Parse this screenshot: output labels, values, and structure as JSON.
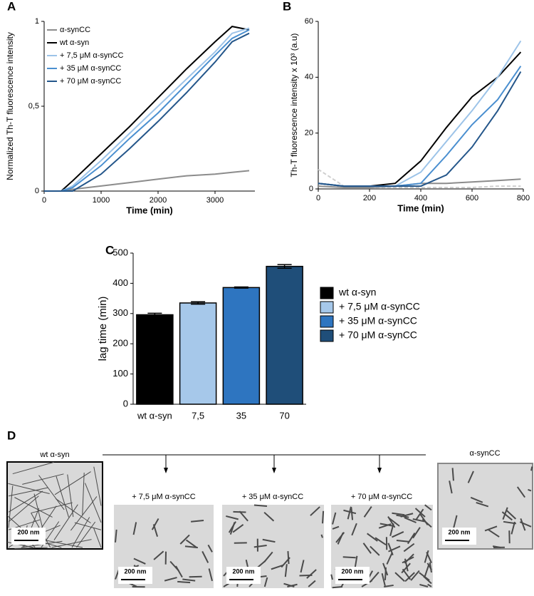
{
  "chart_data": [
    {
      "type": "line",
      "label": "A",
      "xlabel": "Time (min)",
      "ylabel": "Normalized Th-T fluorescence intensity",
      "x": [
        0,
        300,
        500,
        1000,
        1500,
        2000,
        2500,
        3000,
        3300,
        3600
      ],
      "xlim": [
        0,
        3700
      ],
      "xticks": [
        0,
        1000,
        2000,
        3000
      ],
      "ylim": [
        0,
        1
      ],
      "yticks": [
        0,
        {
          "value": 0.5,
          "label": "0,5"
        },
        1
      ],
      "legend": "upper left",
      "series": [
        {
          "name": "α-synCC",
          "color": "#8c8c8c",
          "values": [
            0,
            0,
            0.01,
            0.03,
            0.05,
            0.07,
            0.09,
            0.1,
            0.11,
            0.12
          ]
        },
        {
          "name": "wt α-syn",
          "color": "#000000",
          "values": [
            0,
            0,
            0.06,
            0.22,
            0.38,
            0.55,
            0.72,
            0.88,
            0.97,
            0.95
          ]
        },
        {
          "name": "+ 7,5 μM α-synCC",
          "color": "#9cc3e8",
          "values": [
            0,
            0,
            0.03,
            0.18,
            0.34,
            0.5,
            0.66,
            0.82,
            0.93,
            0.96
          ]
        },
        {
          "name": "+ 35 μM α-synCC",
          "color": "#4a8fd0",
          "values": [
            0,
            0,
            0.02,
            0.15,
            0.31,
            0.46,
            0.63,
            0.8,
            0.9,
            0.95
          ]
        },
        {
          "name": "+ 70 μM α-synCC",
          "color": "#24568a",
          "values": [
            0,
            0,
            0,
            0.1,
            0.25,
            0.41,
            0.58,
            0.76,
            0.88,
            0.93
          ]
        }
      ]
    },
    {
      "type": "line",
      "label": "B",
      "xlabel": "Time (min)",
      "ylabel": "Th-T fluorescence intensity x 10³ (a.u)",
      "x": [
        0,
        100,
        200,
        300,
        400,
        500,
        600,
        700,
        790
      ],
      "xlim": [
        0,
        800
      ],
      "xticks": [
        0,
        200,
        400,
        600,
        800
      ],
      "ylim": [
        0,
        60
      ],
      "yticks": [
        0,
        20,
        40,
        60
      ],
      "series": [
        {
          "color": "#cfcfcf",
          "dashed": true,
          "values": [
            7,
            1,
            0.5,
            0.5,
            0.5,
            0.5,
            0.5,
            1,
            1
          ]
        },
        {
          "color": "#8c8c8c",
          "values": [
            1,
            0.5,
            0.5,
            1,
            2,
            2,
            2.5,
            3,
            3.5
          ]
        },
        {
          "color": "#000000",
          "values": [
            2,
            1,
            1,
            2,
            10,
            22,
            33,
            40,
            49
          ]
        },
        {
          "color": "#9cc3e8",
          "values": [
            2,
            1,
            1,
            1,
            6,
            17,
            28,
            40,
            53
          ]
        },
        {
          "color": "#4a8fd0",
          "values": [
            2,
            1,
            1,
            1,
            2,
            12,
            23,
            32,
            44
          ]
        },
        {
          "color": "#24568a",
          "values": [
            2,
            1,
            1,
            1,
            1,
            5,
            15,
            28,
            42
          ]
        }
      ]
    },
    {
      "type": "bar",
      "label": "C",
      "ylabel": "lag time (min)",
      "categories": [
        "wt α-syn",
        "7,5",
        "35",
        "70"
      ],
      "values": [
        296,
        335,
        386,
        456
      ],
      "errors": [
        5,
        4,
        2,
        6
      ],
      "colors": [
        "#000000",
        "#a6c8ea",
        "#2e75c0",
        "#1f4e79"
      ],
      "legend_labels": [
        "wt α-syn",
        "+ 7,5 μM α-synCC",
        "+ 35 μM α-synCC",
        "+ 70 μM α-synCC"
      ],
      "ylim": [
        0,
        500
      ],
      "yticks": [
        0,
        100,
        200,
        300,
        400,
        500
      ]
    }
  ],
  "panel_d": {
    "label": "D",
    "micrographs": [
      {
        "title": "wt  α-syn",
        "scale": "200 nm"
      },
      {
        "title": "+ 7,5 μM α-synCC",
        "scale": "200 nm"
      },
      {
        "title": "+ 35 μM α-synCC",
        "scale": "200 nm"
      },
      {
        "title": "+ 70 μM α-synCC",
        "scale": "200 nm"
      },
      {
        "title": "α-synCC",
        "scale": "200 nm"
      }
    ]
  }
}
